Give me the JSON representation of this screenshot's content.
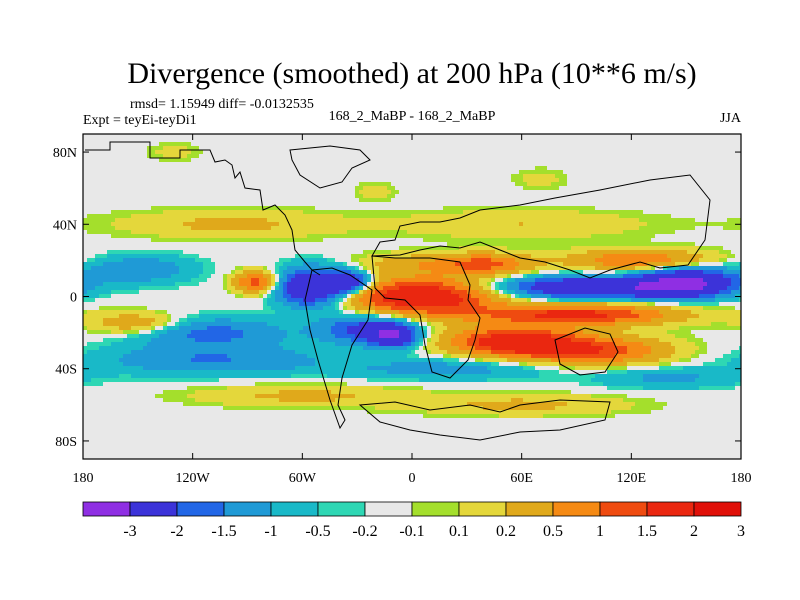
{
  "chart_data": {
    "type": "heatmap",
    "title": "Divergence (smoothed) at 200 hPa (10**6 m/s)",
    "stats_line": "rmsd= 1.15949 diff= -0.0132535",
    "left_label": "Expt = teyEi-teyDi1",
    "center_label": "168_2_MaBP - 168_2_MaBP",
    "right_label": "JJA",
    "x_range": [
      -180,
      180
    ],
    "y_range": [
      -90,
      90
    ],
    "x_ticks": [
      {
        "value": -180,
        "label": "180"
      },
      {
        "value": -120,
        "label": "120W"
      },
      {
        "value": -60,
        "label": "60W"
      },
      {
        "value": 0,
        "label": "0"
      },
      {
        "value": 60,
        "label": "60E"
      },
      {
        "value": 120,
        "label": "120E"
      },
      {
        "value": 180,
        "label": "180"
      }
    ],
    "y_ticks": [
      {
        "value": 80,
        "label": "80N"
      },
      {
        "value": 40,
        "label": "40N"
      },
      {
        "value": 0,
        "label": "0"
      },
      {
        "value": -40,
        "label": "40S"
      },
      {
        "value": -80,
        "label": "80S"
      }
    ],
    "colorbar": {
      "colors": [
        "#8f2fe3",
        "#3c33d9",
        "#2266e6",
        "#1f9ad6",
        "#19b9c8",
        "#2ed7b4",
        "#e8e8e8",
        "#a4df2c",
        "#e4d73b",
        "#e0a91b",
        "#f58a14",
        "#ef4b10",
        "#ea2710",
        "#e01009"
      ],
      "labels": [
        "-3",
        "-2",
        "-1.5",
        "-1",
        "-0.5",
        "-0.2",
        "-0.1",
        "0.1",
        "0.2",
        "0.5",
        "1",
        "1.5",
        "2",
        "3"
      ]
    },
    "field_blobs": [
      {
        "lon": -100,
        "lat": 40,
        "rlon": 60,
        "rlat": 8,
        "amp": 0.6
      },
      {
        "lon": 60,
        "lat": 40,
        "rlon": 70,
        "rlat": 8,
        "amp": 0.5
      },
      {
        "lon": -150,
        "lat": 15,
        "rlon": 30,
        "rlat": 8,
        "amp": -0.9
      },
      {
        "lon": -55,
        "lat": 5,
        "rlon": 18,
        "rlat": 10,
        "amp": -3.0
      },
      {
        "lon": -35,
        "lat": 8,
        "rlon": 12,
        "rlat": 6,
        "amp": -2.5
      },
      {
        "lon": -85,
        "lat": 8,
        "rlon": 12,
        "rlat": 6,
        "amp": 1.8
      },
      {
        "lon": 5,
        "lat": 0,
        "rlon": 40,
        "rlat": 10,
        "amp": 2.8
      },
      {
        "lon": 0,
        "lat": 18,
        "rlon": 30,
        "rlat": 6,
        "amp": 0.7
      },
      {
        "lon": 40,
        "lat": 18,
        "rlon": 25,
        "rlat": 6,
        "amp": 1.6
      },
      {
        "lon": 100,
        "lat": 5,
        "rlon": 50,
        "rlat": 6,
        "amp": -2.8
      },
      {
        "lon": 150,
        "lat": 8,
        "rlon": 25,
        "rlat": 8,
        "amp": -3.0
      },
      {
        "lon": 125,
        "lat": 20,
        "rlon": 40,
        "rlat": 6,
        "amp": 1.5
      },
      {
        "lon": 90,
        "lat": -10,
        "rlon": 55,
        "rlat": 6,
        "amp": 2.2
      },
      {
        "lon": -150,
        "lat": -15,
        "rlon": 25,
        "rlat": 6,
        "amp": 1.0
      },
      {
        "lon": -110,
        "lat": -20,
        "rlon": 40,
        "rlat": 8,
        "amp": -1.2
      },
      {
        "lon": -25,
        "lat": -18,
        "rlon": 25,
        "rlat": 8,
        "amp": -1.8
      },
      {
        "lon": -10,
        "lat": -22,
        "rlon": 12,
        "rlat": 6,
        "amp": -2.5
      },
      {
        "lon": 55,
        "lat": -25,
        "rlon": 35,
        "rlat": 8,
        "amp": 2.5
      },
      {
        "lon": 100,
        "lat": -30,
        "rlon": 40,
        "rlat": 8,
        "amp": 1.8
      },
      {
        "lon": -110,
        "lat": -35,
        "rlon": 60,
        "rlat": 8,
        "amp": -1.0
      },
      {
        "lon": 20,
        "lat": -40,
        "rlon": 60,
        "rlat": 6,
        "amp": -0.7
      },
      {
        "lon": 140,
        "lat": -45,
        "rlon": 40,
        "rlat": 6,
        "amp": -0.6
      },
      {
        "lon": -60,
        "lat": -55,
        "rlon": 60,
        "rlat": 6,
        "amp": 0.6
      },
      {
        "lon": 60,
        "lat": -60,
        "rlon": 60,
        "rlat": 6,
        "amp": 0.6
      },
      {
        "lon": -130,
        "lat": 80,
        "rlon": 15,
        "rlat": 5,
        "amp": 0.3
      },
      {
        "lon": 70,
        "lat": 65,
        "rlon": 15,
        "rlat": 6,
        "amp": 0.3
      },
      {
        "lon": -20,
        "lat": 58,
        "rlon": 10,
        "rlat": 5,
        "amp": 0.4
      }
    ]
  }
}
